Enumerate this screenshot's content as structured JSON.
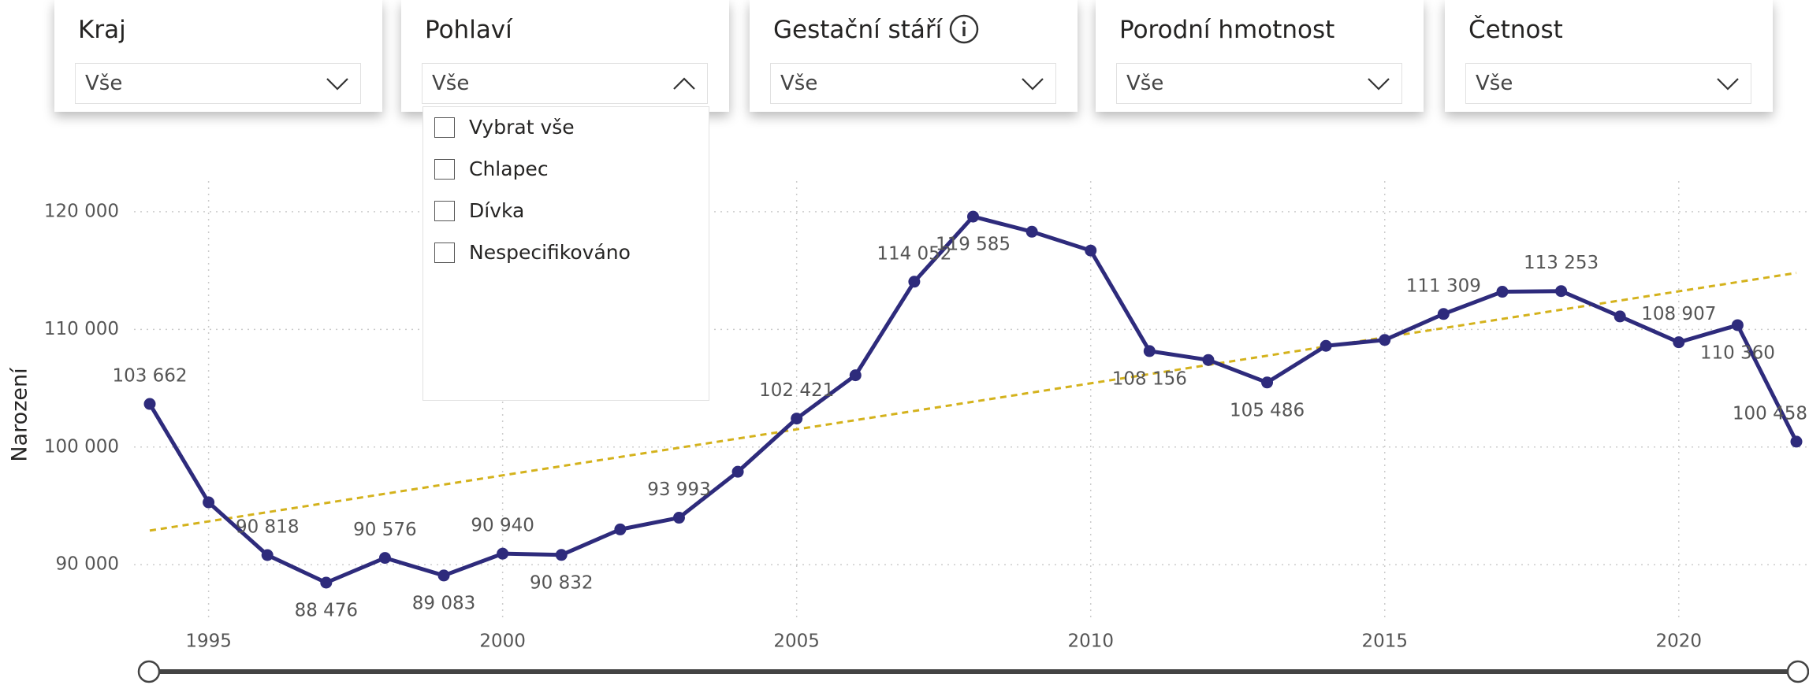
{
  "filters": [
    {
      "title": "Kraj",
      "value": "Vše"
    },
    {
      "title": "Pohlaví",
      "value": "Vše"
    },
    {
      "title": "Gestační stáří",
      "value": "Vše"
    },
    {
      "title": "Porodní hmotnost",
      "value": "Vše"
    },
    {
      "title": "Četnost",
      "value": "Vše"
    }
  ],
  "dropdown": {
    "items": [
      "Vybrat vše",
      "Chlapec",
      "Dívka",
      "Nespecifikováno"
    ]
  },
  "chart_data": {
    "type": "line",
    "y_label": "Narození",
    "x": [
      1994,
      1995,
      1996,
      1997,
      1998,
      1999,
      2000,
      2001,
      2002,
      2003,
      2004,
      2005,
      2006,
      2007,
      2008,
      2009,
      2010,
      2011,
      2012,
      2013,
      2014,
      2015,
      2016,
      2017,
      2018,
      2019,
      2020,
      2021,
      2022
    ],
    "series": [
      {
        "name": "Narození",
        "color": "#2e2b7c",
        "values": [
          103662,
          95300,
          90818,
          88476,
          90576,
          89083,
          90940,
          90832,
          93000,
          93993,
          97900,
          102421,
          106100,
          114052,
          119585,
          118300,
          116700,
          108156,
          107400,
          105486,
          108600,
          109100,
          111309,
          113200,
          113253,
          111100,
          108907,
          110360,
          100458
        ],
        "value_labels": [
          "103 662",
          null,
          "90 818",
          "88 476",
          "90 576",
          "89 083",
          "90 940",
          "90 832",
          null,
          "93 993",
          null,
          "102 421",
          null,
          "114 052",
          "119 585",
          null,
          null,
          "108 156",
          null,
          "105 486",
          null,
          null,
          "111 309",
          null,
          "113 253",
          null,
          "108 907",
          "110 360",
          "100 458"
        ]
      }
    ],
    "trend": {
      "color": "#d4b21c",
      "x": [
        1994,
        2022
      ],
      "values": [
        92900,
        114800
      ]
    },
    "xlim": [
      1994,
      2022
    ],
    "xticks": [
      1995,
      2000,
      2005,
      2010,
      2015,
      2020
    ],
    "ylim": [
      86000,
      122000
    ],
    "yticks": [
      {
        "value": 90000,
        "label": "90 000"
      },
      {
        "value": 100000,
        "label": "100 000"
      },
      {
        "value": 110000,
        "label": "110 000"
      },
      {
        "value": 120000,
        "label": "120 000"
      }
    ],
    "grid": true
  }
}
